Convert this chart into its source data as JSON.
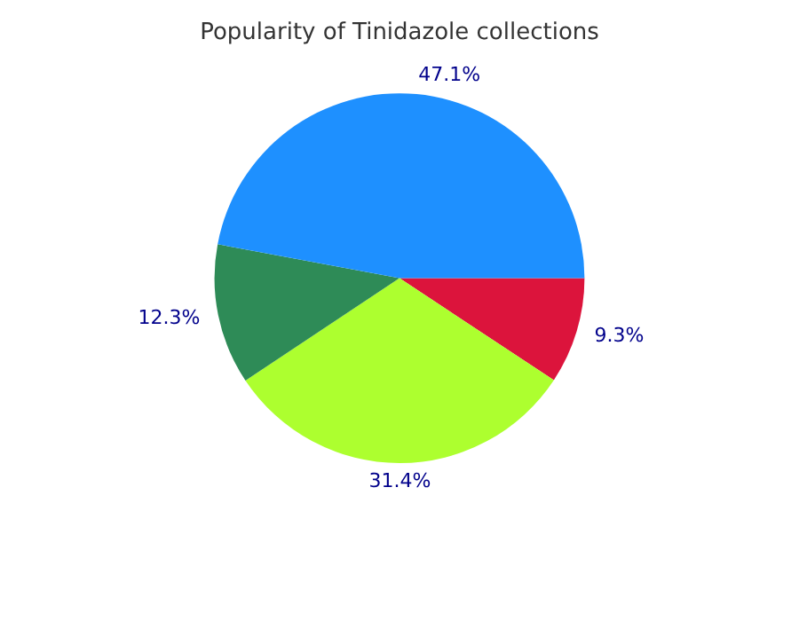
{
  "chart_data": {
    "type": "pie",
    "title": "Popularity of Tinidazole collections",
    "categories": [
      null,
      null,
      null,
      null
    ],
    "values": [
      9.3,
      31.4,
      12.3,
      47.1
    ],
    "colors": [
      "#dc143c",
      "#adff2f",
      "#2e8b57",
      "#1e90ff"
    ],
    "value_labels": [
      "9.3%",
      "31.4%",
      "12.3%",
      "47.1%"
    ],
    "legend": false
  }
}
